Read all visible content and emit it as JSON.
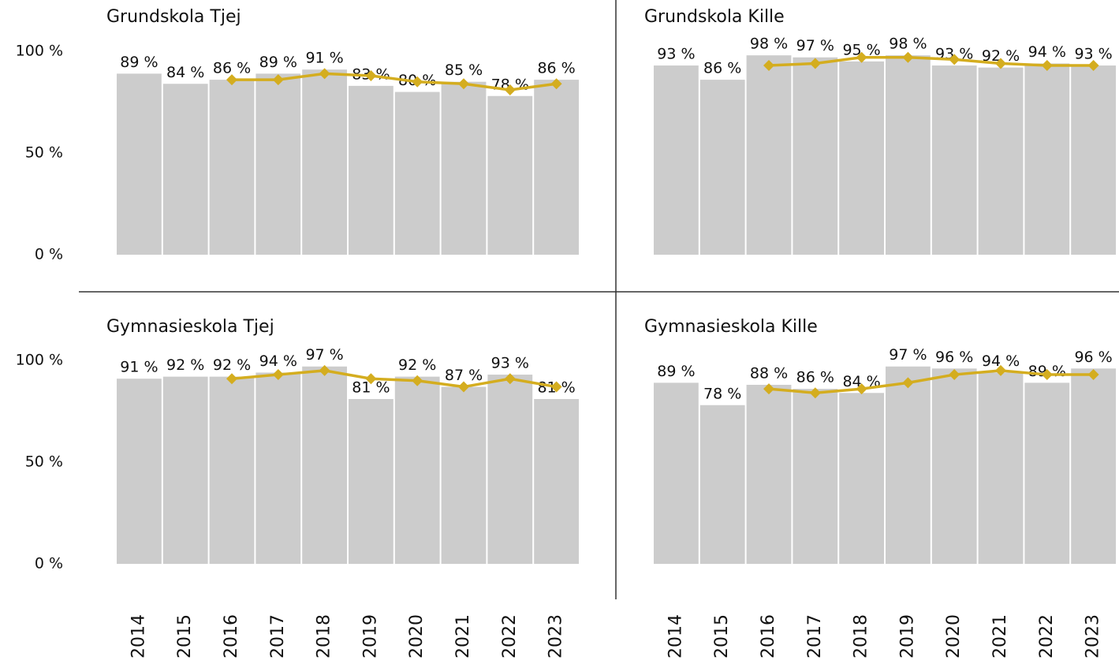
{
  "chart_data": [
    {
      "type": "bar",
      "title": "Grundskola Tjej",
      "color": "#cccccc",
      "values": [
        89,
        84,
        86,
        89,
        91,
        83,
        80,
        85,
        78,
        86
      ],
      "value_labels": [
        "89 %",
        "84 %",
        "86 %",
        "89 %",
        "91 %",
        "83 %",
        "80 %",
        "85 %",
        "78 %",
        "86 %"
      ],
      "line": {
        "color": "#d4ad1f",
        "values": [
          null,
          null,
          86,
          86,
          89,
          88,
          85,
          84,
          81,
          84
        ]
      },
      "ylim": [
        0,
        100
      ],
      "yticks": [
        {
          "value": 0,
          "label": "0 %"
        },
        {
          "value": 50,
          "label": "50 %"
        },
        {
          "value": 100,
          "label": "100 %"
        }
      ]
    },
    {
      "type": "bar",
      "title": "Grundskola Kille",
      "color": "#cccccc",
      "values": [
        93,
        86,
        98,
        97,
        95,
        98,
        93,
        92,
        94,
        93
      ],
      "value_labels": [
        "93 %",
        "86 %",
        "98 %",
        "97 %",
        "95 %",
        "98 %",
        "93 %",
        "92 %",
        "94 %",
        "93 %"
      ],
      "line": {
        "color": "#d4ad1f",
        "values": [
          null,
          null,
          93,
          94,
          97,
          97,
          96,
          94,
          93,
          93
        ]
      },
      "ylim": [
        0,
        100
      ]
    },
    {
      "type": "bar",
      "title": "Gymnasieskola Tjej",
      "color": "#cccccc",
      "categories": [
        "2014",
        "2015",
        "2016",
        "2017",
        "2018",
        "2019",
        "2020",
        "2021",
        "2022",
        "2023"
      ],
      "values": [
        91,
        92,
        92,
        94,
        97,
        81,
        92,
        87,
        93,
        81
      ],
      "value_labels": [
        "91 %",
        "92 %",
        "92 %",
        "94 %",
        "97 %",
        "81 %",
        "92 %",
        "87 %",
        "93 %",
        "81 %"
      ],
      "line": {
        "color": "#d4ad1f",
        "values": [
          null,
          null,
          91,
          93,
          95,
          91,
          90,
          87,
          91,
          87
        ]
      },
      "ylim": [
        0,
        100
      ],
      "yticks": [
        {
          "value": 0,
          "label": "0 %"
        },
        {
          "value": 50,
          "label": "50 %"
        },
        {
          "value": 100,
          "label": "100 %"
        }
      ]
    },
    {
      "type": "bar",
      "title": "Gymnasieskola Kille",
      "color": "#cccccc",
      "categories": [
        "2014",
        "2015",
        "2016",
        "2017",
        "2018",
        "2019",
        "2020",
        "2021",
        "2022",
        "2023"
      ],
      "values": [
        89,
        78,
        88,
        86,
        84,
        97,
        96,
        94,
        89,
        96
      ],
      "value_labels": [
        "89 %",
        "78 %",
        "88 %",
        "86 %",
        "84 %",
        "97 %",
        "96 %",
        "94 %",
        "89 %",
        "96 %"
      ],
      "line": {
        "color": "#d4ad1f",
        "values": [
          null,
          null,
          86,
          84,
          86,
          89,
          93,
          95,
          93,
          93
        ]
      },
      "ylim": [
        0,
        100
      ]
    }
  ]
}
